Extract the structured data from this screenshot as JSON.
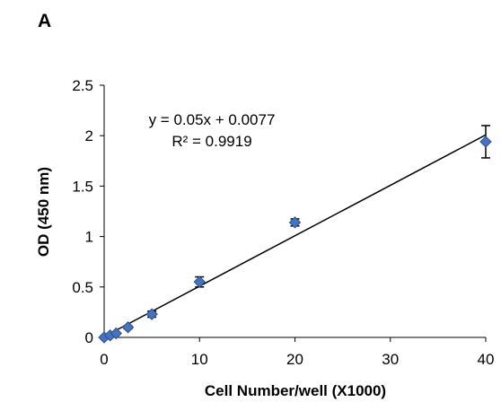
{
  "panel_label": "A",
  "chart_data": {
    "type": "scatter",
    "title": "",
    "xlabel": "Cell Number/well (X1000)",
    "ylabel": "OD (450 nm)",
    "xlim": [
      0,
      40
    ],
    "ylim": [
      0,
      2.5
    ],
    "x_ticks": [
      "0",
      "10",
      "20",
      "30",
      "40"
    ],
    "y_ticks": [
      "0",
      "0.5",
      "1",
      "1.5",
      "2",
      "2.5"
    ],
    "x": [
      0,
      0.625,
      1.25,
      2.5,
      5,
      10,
      20,
      40
    ],
    "y": [
      0.0,
      0.02,
      0.04,
      0.1,
      0.23,
      0.55,
      1.14,
      1.94
    ],
    "error": [
      0.005,
      0.005,
      0.01,
      0.015,
      0.03,
      0.05,
      0.035,
      0.16
    ],
    "trendline": {
      "slope": 0.05,
      "intercept": 0.0077,
      "equation": "y = 0.05x + 0.0077",
      "r2": "R² = 0.9919"
    },
    "marker_color": "#4472C4",
    "marker_edge_color": "#2F4F80",
    "marker_shape": "diamond",
    "grid": false
  }
}
